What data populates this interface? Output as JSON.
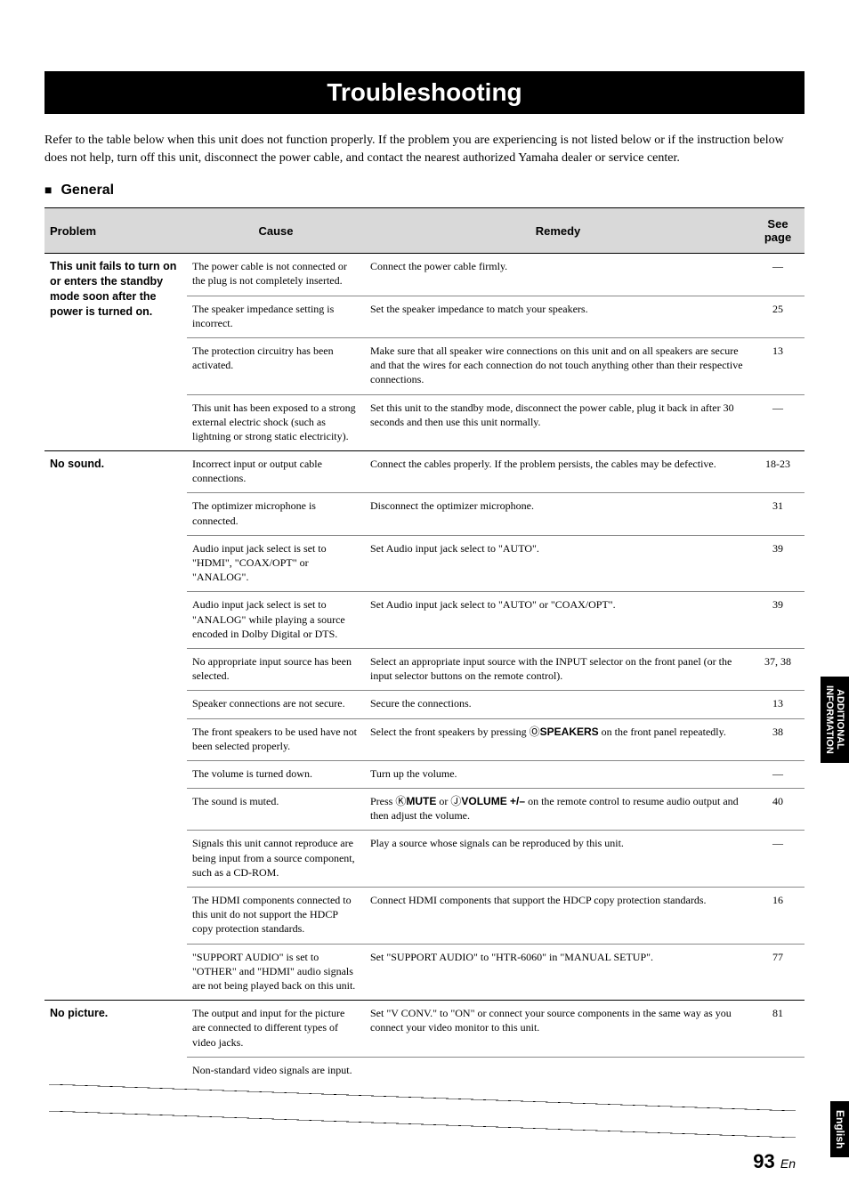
{
  "title": "Troubleshooting",
  "intro": "Refer to the table below when this unit does not function properly. If the problem you are experiencing is not listed below or if the instruction below does not help, turn off this unit, disconnect the power cable, and contact the nearest authorized Yamaha dealer or service center.",
  "section": "General",
  "headers": {
    "problem": "Problem",
    "cause": "Cause",
    "remedy": "Remedy",
    "seepage": "See page"
  },
  "groups": [
    {
      "problem": "This unit fails to turn on or enters the standby mode soon after the power is turned on.",
      "rows": [
        {
          "cause": "The power cable is not connected or the plug is not completely inserted.",
          "remedy": "Connect the power cable firmly.",
          "page": "—"
        },
        {
          "cause": "The speaker impedance setting is incorrect.",
          "remedy": "Set the speaker impedance to match your speakers.",
          "page": "25"
        },
        {
          "cause": "The protection circuitry has been activated.",
          "remedy": "Make sure that all speaker wire connections on this unit and on all speakers are secure and that the wires for each connection do not touch anything other than their respective connections.",
          "page": "13"
        },
        {
          "cause": "This unit has been exposed to a strong external electric shock (such as lightning or strong static electricity).",
          "remedy": "Set this unit to the standby mode, disconnect the power cable, plug it back in after 30 seconds and then use this unit normally.",
          "page": "—"
        }
      ]
    },
    {
      "problem": "No sound.",
      "rows": [
        {
          "cause": "Incorrect input or output cable connections.",
          "remedy": "Connect the cables properly. If the problem persists, the cables may be defective.",
          "page": "18-23"
        },
        {
          "cause": "The optimizer microphone is connected.",
          "remedy": "Disconnect the optimizer microphone.",
          "page": "31"
        },
        {
          "cause": "Audio input jack select is set to \"HDMI\", \"COAX/OPT\" or \"ANALOG\".",
          "remedy": "Set Audio input jack select to \"AUTO\".",
          "page": "39"
        },
        {
          "cause": "Audio input jack select is set to \"ANALOG\" while playing a source encoded in Dolby Digital or DTS.",
          "remedy": "Set Audio input jack select to \"AUTO\" or \"COAX/OPT\".",
          "page": "39"
        },
        {
          "cause": "No appropriate input source has been selected.",
          "remedy": "Select an appropriate input source with the INPUT selector on the front panel (or the input selector buttons on the remote control).",
          "page": "37, 38"
        },
        {
          "cause": "Speaker connections are not secure.",
          "remedy": "Secure the connections.",
          "page": "13"
        },
        {
          "cause": "The front speakers to be used have not been selected properly.",
          "remedy_html": "Select the front speakers by pressing <span class=\"circled\">Ⓞ</span><span class=\"bold-sans\">SPEAKERS</span> on the front panel repeatedly.",
          "page": "38"
        },
        {
          "cause": "The volume is turned down.",
          "remedy": "Turn up the volume.",
          "page": "—"
        },
        {
          "cause": "The sound is muted.",
          "remedy_html": "Press <span class=\"circled\">Ⓚ</span><span class=\"bold-sans\">MUTE</span> or <span class=\"circled\">Ⓙ</span><span class=\"bold-sans\">VOLUME +/–</span> on the remote control to resume audio output and then adjust the volume.",
          "page": "40"
        },
        {
          "cause": "Signals this unit cannot reproduce are being input from a source component, such as a CD-ROM.",
          "remedy": "Play a source whose signals can be reproduced by this unit.",
          "page": "—"
        },
        {
          "cause": "The HDMI components connected to this unit do not support the HDCP copy protection standards.",
          "remedy": "Connect HDMI components that support the HDCP copy protection standards.",
          "page": "16"
        },
        {
          "cause": "\"SUPPORT AUDIO\" is set to \"OTHER\" and \"HDMI\" audio signals are not being played back on this unit.",
          "remedy": "Set \"SUPPORT AUDIO\" to \"HTR-6060\" in \"MANUAL SETUP\".",
          "page": "77"
        }
      ]
    },
    {
      "problem": "No picture.",
      "rows": [
        {
          "cause": "The output and input for the picture are connected to different types of video jacks.",
          "remedy": "Set \"V CONV.\" to \"ON\" or connect your source components in the same way as you connect your video monitor to this unit.",
          "page": "81"
        },
        {
          "cause": "Non-standard video signals are input.",
          "remedy": "",
          "page": ""
        }
      ]
    }
  ],
  "sideTab1a": "ADDITIONAL",
  "sideTab1b": "INFORMATION",
  "sideTab2": "English",
  "pageNumber": "93",
  "pageSuffix": "En"
}
